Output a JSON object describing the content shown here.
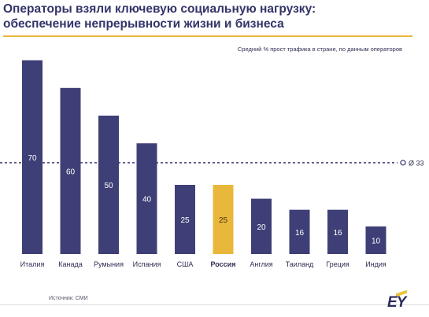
{
  "header": {
    "title_line1": "Операторы взяли ключевую социальную нагрузку:",
    "title_line2": "обеспечение непрерывности жизни и бизнеса",
    "subtitle": "Средний % прост трафика в стране, по данным операторов"
  },
  "footer": {
    "source": "Источник: СМИ",
    "logo": "EY"
  },
  "colors": {
    "bar": "#3f3f77",
    "highlight": "#eab73d",
    "text": "#2f2f55",
    "rule": "#e9b73c"
  },
  "chart_data": {
    "type": "bar",
    "categories": [
      "Италия",
      "Канада",
      "Румыния",
      "Испания",
      "США",
      "Россия",
      "Англия",
      "Таиланд",
      "Греция",
      "Индия"
    ],
    "values": [
      70,
      60,
      50,
      40,
      25,
      25,
      20,
      16,
      16,
      10
    ],
    "highlight_category": "Россия",
    "reference_line": {
      "value": 33,
      "label": "Ø 33"
    },
    "ylim": [
      0,
      75
    ],
    "title": "Средний % прост трафика в стране, по данным операторов"
  }
}
